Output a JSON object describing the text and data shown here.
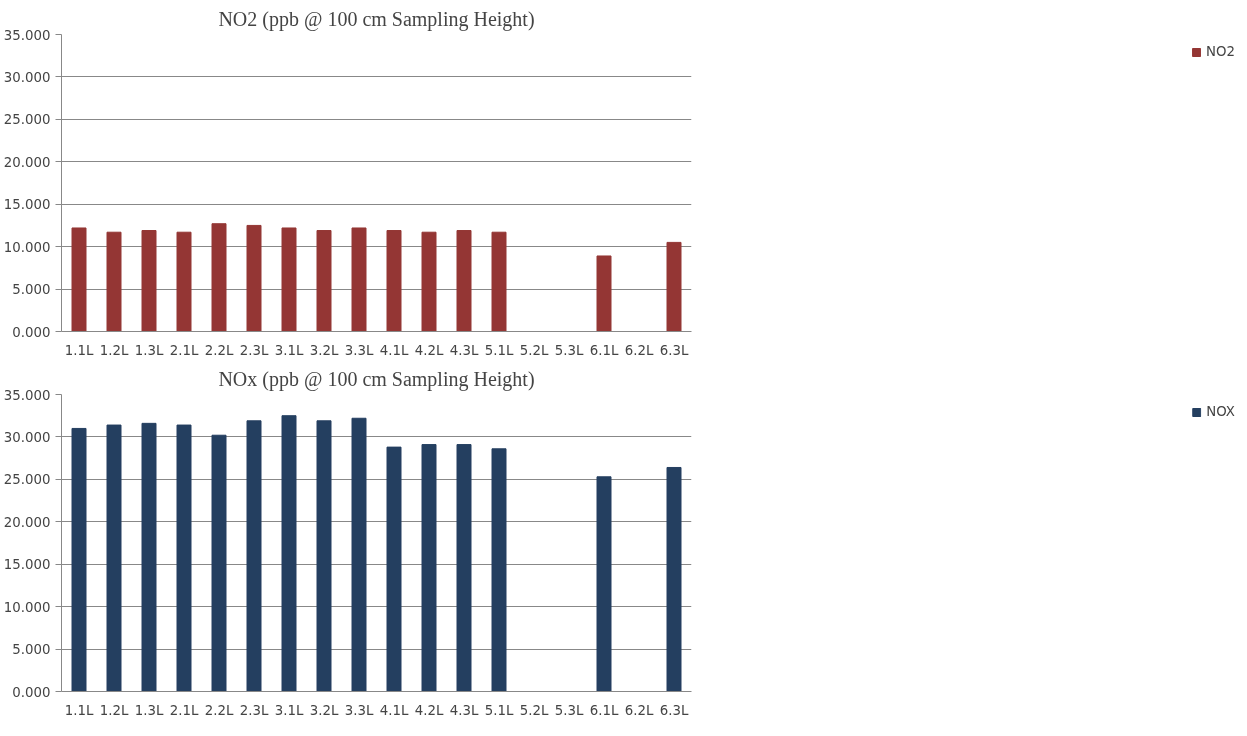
{
  "chart_data": [
    {
      "type": "bar",
      "title": "NO2 (ppb @ 100 cm Sampling Height)",
      "categories": [
        "1.1L",
        "1.2L",
        "1.3L",
        "2.1L",
        "2.2L",
        "2.3L",
        "3.1L",
        "3.2L",
        "3.3L",
        "4.1L",
        "4.2L",
        "4.3L",
        "5.1L",
        "5.2L",
        "5.3L",
        "6.1L",
        "6.2L",
        "6.3L"
      ],
      "series": [
        {
          "name": "NO2",
          "color": "#943634",
          "values": [
            12.2,
            11.7,
            11.9,
            11.7,
            12.7,
            12.5,
            12.2,
            11.9,
            12.2,
            11.9,
            11.7,
            11.9,
            11.7,
            null,
            null,
            8.9,
            null,
            10.5
          ]
        }
      ],
      "ylim": [
        0,
        35
      ],
      "yticks": [
        {
          "value": 0,
          "label": "0.000"
        },
        {
          "value": 5,
          "label": "5.000"
        },
        {
          "value": 10,
          "label": "10.000"
        },
        {
          "value": 15,
          "label": "15.000"
        },
        {
          "value": 20,
          "label": "20.000"
        },
        {
          "value": 25,
          "label": "25.000"
        },
        {
          "value": 30,
          "label": "30.000"
        },
        {
          "value": 35,
          "label": "35.000"
        }
      ],
      "grid": "y",
      "legend": "right"
    },
    {
      "type": "bar",
      "title": "NOx (ppb @ 100 cm Sampling Height)",
      "categories": [
        "1.1L",
        "1.2L",
        "1.3L",
        "2.1L",
        "2.2L",
        "2.3L",
        "3.1L",
        "3.2L",
        "3.3L",
        "4.1L",
        "4.2L",
        "4.3L",
        "5.1L",
        "5.2L",
        "5.3L",
        "6.1L",
        "6.2L",
        "6.3L"
      ],
      "series": [
        {
          "name": "NOX",
          "color": "#243f60",
          "values": [
            31.0,
            31.4,
            31.6,
            31.4,
            30.2,
            31.9,
            32.5,
            31.9,
            32.2,
            28.8,
            29.1,
            29.1,
            28.6,
            null,
            null,
            25.3,
            null,
            26.4
          ]
        }
      ],
      "ylim": [
        0,
        35
      ],
      "yticks": [
        {
          "value": 0,
          "label": "0.000"
        },
        {
          "value": 5,
          "label": "5.000"
        },
        {
          "value": 10,
          "label": "10.000"
        },
        {
          "value": 15,
          "label": "15.000"
        },
        {
          "value": 20,
          "label": "20.000"
        },
        {
          "value": 25,
          "label": "25.000"
        },
        {
          "value": 30,
          "label": "30.000"
        },
        {
          "value": 35,
          "label": "35.000"
        }
      ],
      "grid": "y",
      "legend": "right"
    }
  ]
}
